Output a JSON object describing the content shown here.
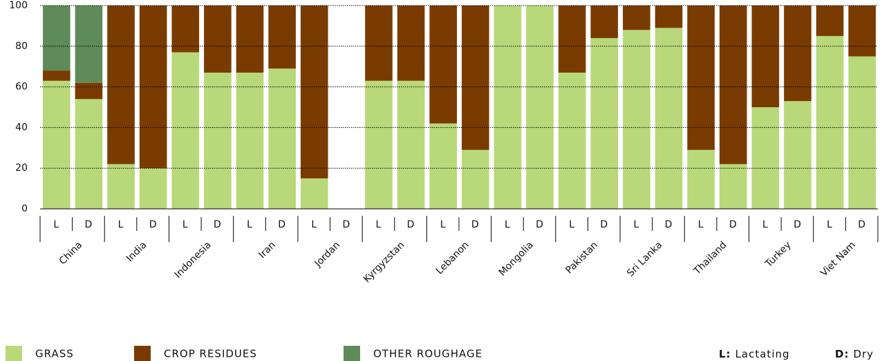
{
  "chart_data": {
    "type": "stacked_bar",
    "groups": [
      "China",
      "India",
      "Indonesia",
      "Iran",
      "Jordan",
      "Kyrgyzstan",
      "Lebanon",
      "Mongolia",
      "Pakistan",
      "Sri Lanka",
      "Thailand",
      "Turkey",
      "Viet Nam"
    ],
    "categories": [
      "L",
      "D",
      "L",
      "D",
      "L",
      "D",
      "L",
      "D",
      "L",
      "D",
      "L",
      "D",
      "L",
      "D",
      "L",
      "D",
      "L",
      "D",
      "L",
      "D",
      "L",
      "D",
      "L",
      "D",
      "L",
      "D"
    ],
    "series": [
      {
        "name": "GRASS",
        "color": "#b8d87a",
        "values": [
          63,
          54,
          22,
          20,
          77,
          67,
          67,
          69,
          15,
          null,
          63,
          63,
          42,
          29,
          100,
          100,
          67,
          84,
          88,
          89,
          29,
          22,
          50,
          53,
          85,
          75
        ]
      },
      {
        "name": "CROP RESIDUES",
        "color": "#7a3b00",
        "values": [
          5,
          8,
          78,
          80,
          23,
          33,
          33,
          31,
          85,
          null,
          37,
          37,
          58,
          71,
          0,
          0,
          33,
          16,
          12,
          11,
          71,
          78,
          50,
          47,
          15,
          25
        ]
      },
      {
        "name": "OTHER ROUGHAGE",
        "color": "#5f8a5a",
        "values": [
          32,
          38,
          0,
          0,
          0,
          0,
          0,
          0,
          0,
          null,
          0,
          0,
          0,
          0,
          0,
          0,
          0,
          0,
          0,
          0,
          0,
          0,
          0,
          0,
          0,
          0
        ]
      }
    ],
    "ylim": [
      0,
      100
    ],
    "yticks": [
      0,
      20,
      40,
      60,
      80,
      100
    ],
    "grid": true,
    "key_notes": [
      {
        "key": "L:",
        "text": "Lactating"
      },
      {
        "key": "D:",
        "text": "Dry"
      }
    ]
  }
}
